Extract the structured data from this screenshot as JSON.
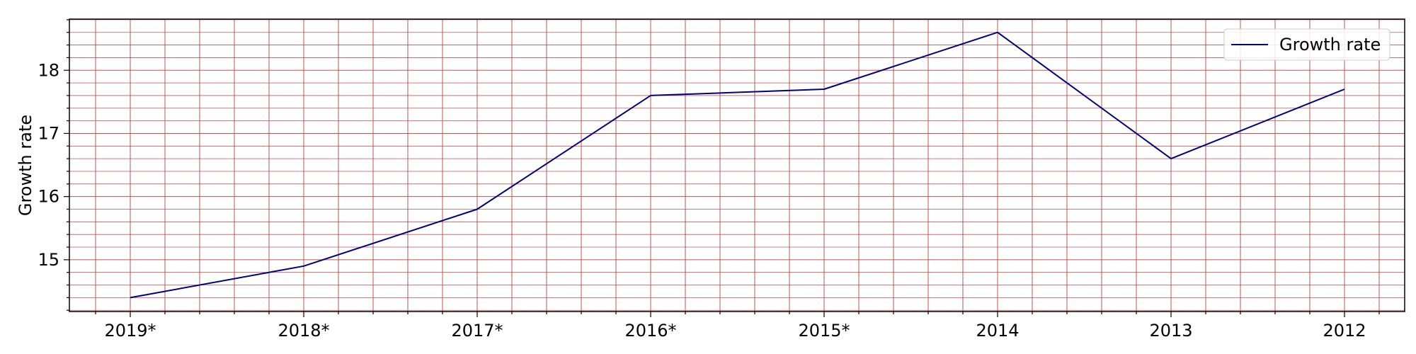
{
  "chart_data": {
    "type": "line",
    "categories": [
      "2019*",
      "2018*",
      "2017*",
      "2016*",
      "2015*",
      "2014",
      "2013",
      "2012"
    ],
    "series": [
      {
        "name": "Growth rate",
        "values": [
          14.4,
          14.9,
          15.8,
          17.6,
          17.7,
          18.6,
          16.6,
          17.7
        ]
      }
    ],
    "title": "",
    "xlabel": "",
    "ylabel": "Growth rate",
    "ylim": [
      14.18,
      18.81
    ],
    "yticks": [
      15,
      16,
      17,
      18
    ],
    "y_minor_step": 0.2,
    "grid": true,
    "grid_minor": true,
    "legend_position": "top-right",
    "colors": {
      "series": "#000080",
      "grid": "#b03a3a",
      "axis": "#000000",
      "legend_border": "#cccccc"
    }
  }
}
